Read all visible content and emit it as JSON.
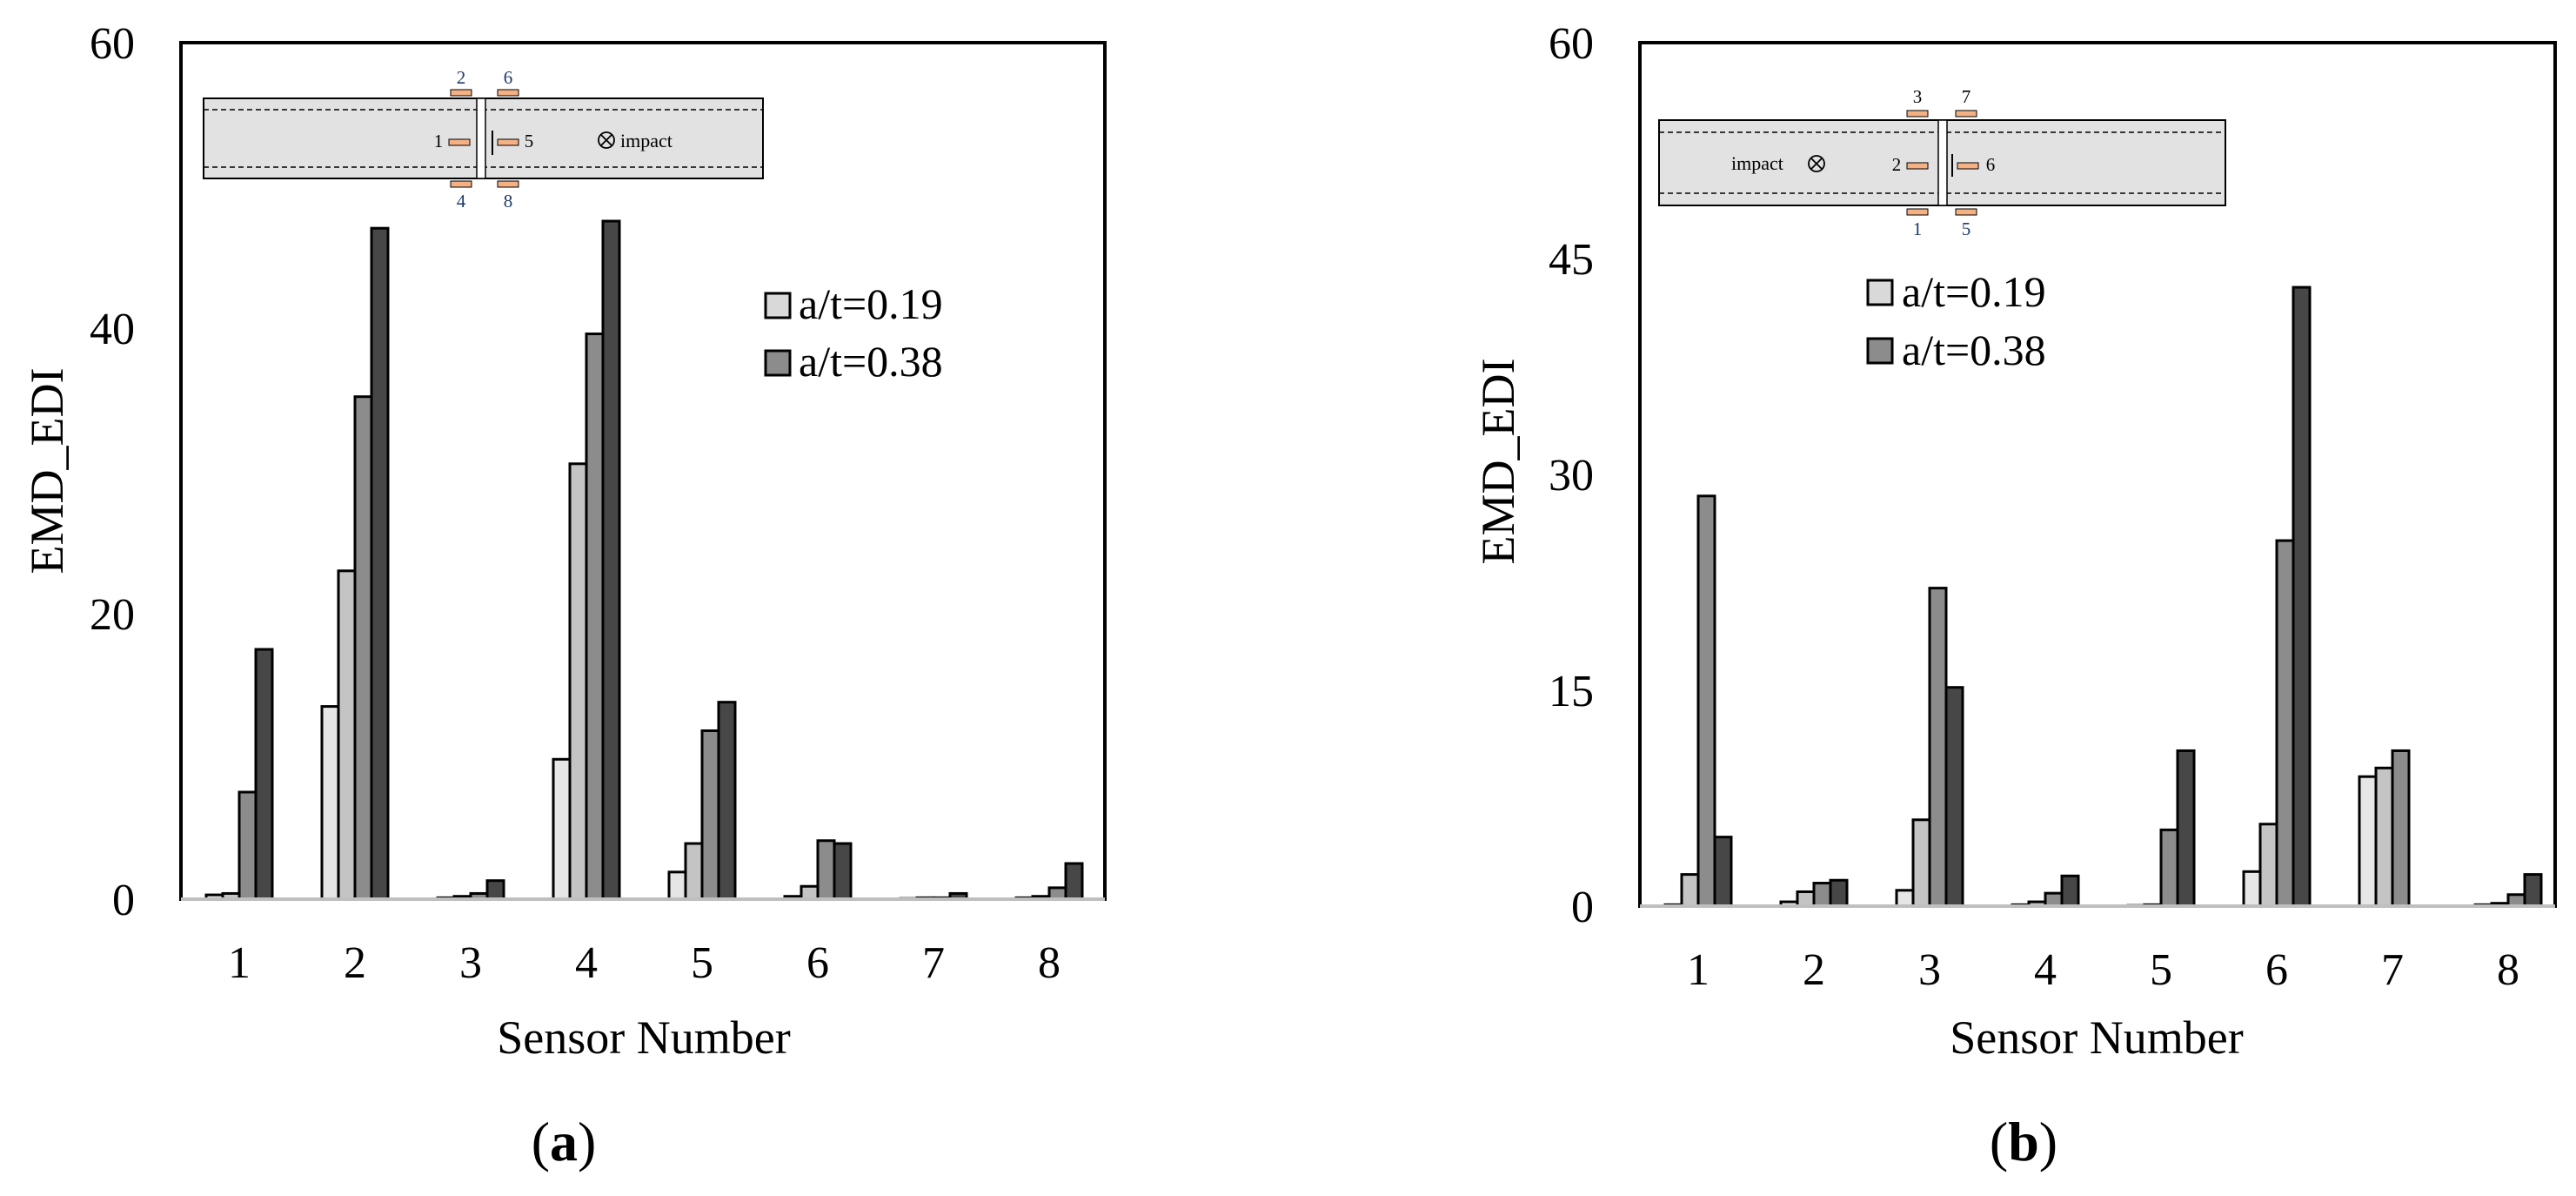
{
  "chart_data": [
    {
      "type": "bar",
      "panel": "(a)",
      "categories": [
        "1",
        "2",
        "3",
        "4",
        "5",
        "6",
        "7",
        "8"
      ],
      "xlabel": "Sensor Number",
      "ylabel": "EMD_EDI",
      "ylim": [
        0,
        60
      ],
      "yticks": [
        "0",
        "20",
        "40",
        "60"
      ],
      "grid": false,
      "legend_position": "upper-right",
      "legend": [
        {
          "label": "a/t=0.19",
          "color": "#d9d9d9"
        },
        {
          "label": "a/t=0.38",
          "color": "#8c8c8c"
        }
      ],
      "bars_per_group": 4,
      "bar_colors": [
        "#e6e6e6",
        "#c4c4c4",
        "#8c8c8c",
        "#474747"
      ],
      "values": [
        [
          0.3,
          0.4,
          7.5,
          17.5
        ],
        [
          13.5,
          23.0,
          35.2,
          47.0
        ],
        [
          0.1,
          0.2,
          0.4,
          1.3
        ],
        [
          9.8,
          30.5,
          39.6,
          47.5
        ],
        [
          1.9,
          3.9,
          11.8,
          13.8
        ],
        [
          0.2,
          0.9,
          4.1,
          3.9
        ],
        [
          0.05,
          0.1,
          0.1,
          0.4
        ],
        [
          0.1,
          0.2,
          0.8,
          2.5
        ]
      ],
      "inset": {
        "sensor_labels": [
          "2",
          "6",
          "1",
          "5",
          "4",
          "8"
        ],
        "impact_label": "impact"
      }
    },
    {
      "type": "bar",
      "panel": "(b)",
      "categories": [
        "1",
        "2",
        "3",
        "4",
        "5",
        "6",
        "7",
        "8"
      ],
      "xlabel": "Sensor Number",
      "ylabel": "EMD_EDI",
      "ylim": [
        0,
        60
      ],
      "yticks": [
        "0",
        "15",
        "30",
        "45",
        "60"
      ],
      "grid": false,
      "legend_position": "upper-center",
      "legend": [
        {
          "label": "a/t=0.19",
          "color": "#d9d9d9"
        },
        {
          "label": "a/t=0.38",
          "color": "#8c8c8c"
        }
      ],
      "bars_per_group": 4,
      "bar_colors": [
        "#e6e6e6",
        "#c4c4c4",
        "#8c8c8c",
        "#474747"
      ],
      "values": [
        [
          0.1,
          2.2,
          28.5,
          4.8
        ],
        [
          0.3,
          1.0,
          1.6,
          1.8
        ],
        [
          1.1,
          6.0,
          22.1,
          15.2
        ],
        [
          0.1,
          0.3,
          0.9,
          2.1
        ],
        [
          0.05,
          0.1,
          5.3,
          10.8
        ],
        [
          2.4,
          5.7,
          25.4,
          43.0
        ],
        [
          9.0,
          9.6,
          10.8,
          0.0
        ],
        [
          0.1,
          0.2,
          0.8,
          2.2
        ]
      ],
      "inset": {
        "sensor_labels": [
          "3",
          "7",
          "2",
          "6",
          "1",
          "5"
        ],
        "impact_label": "impact"
      }
    }
  ]
}
